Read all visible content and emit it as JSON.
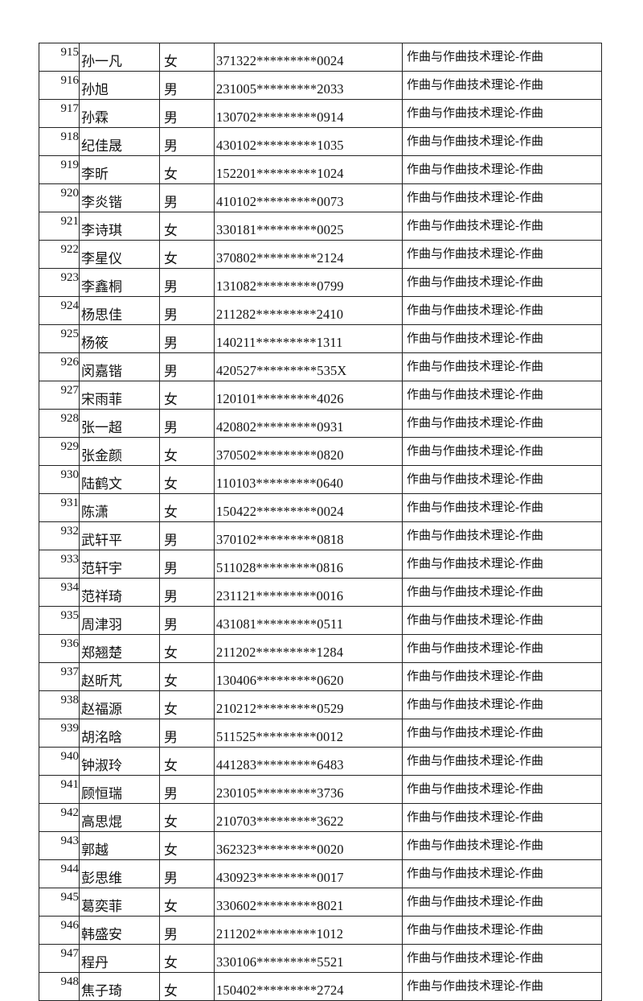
{
  "rows": [
    {
      "no": "915",
      "name": "孙一凡",
      "gender": "女",
      "id": "371322*********0024",
      "major": "作曲与作曲技术理论-作曲"
    },
    {
      "no": "916",
      "name": "孙旭",
      "gender": "男",
      "id": "231005*********2033",
      "major": "作曲与作曲技术理论-作曲"
    },
    {
      "no": "917",
      "name": "孙霖",
      "gender": "男",
      "id": "130702*********0914",
      "major": "作曲与作曲技术理论-作曲"
    },
    {
      "no": "918",
      "name": "纪佳晟",
      "gender": "男",
      "id": "430102*********1035",
      "major": "作曲与作曲技术理论-作曲"
    },
    {
      "no": "919",
      "name": "李昕",
      "gender": "女",
      "id": "152201*********1024",
      "major": "作曲与作曲技术理论-作曲"
    },
    {
      "no": "920",
      "name": "李炎锴",
      "gender": "男",
      "id": "410102*********0073",
      "major": "作曲与作曲技术理论-作曲"
    },
    {
      "no": "921",
      "name": "李诗琪",
      "gender": "女",
      "id": "330181*********0025",
      "major": "作曲与作曲技术理论-作曲"
    },
    {
      "no": "922",
      "name": "李星仪",
      "gender": "女",
      "id": "370802*********2124",
      "major": "作曲与作曲技术理论-作曲"
    },
    {
      "no": "923",
      "name": "李鑫桐",
      "gender": "男",
      "id": "131082*********0799",
      "major": "作曲与作曲技术理论-作曲"
    },
    {
      "no": "924",
      "name": "杨思佳",
      "gender": "男",
      "id": "211282*********2410",
      "major": "作曲与作曲技术理论-作曲"
    },
    {
      "no": "925",
      "name": "杨筱",
      "gender": "男",
      "id": "140211*********1311",
      "major": "作曲与作曲技术理论-作曲"
    },
    {
      "no": "926",
      "name": "闵嘉锴",
      "gender": "男",
      "id": "420527*********535X",
      "major": "作曲与作曲技术理论-作曲"
    },
    {
      "no": "927",
      "name": "宋雨菲",
      "gender": "女",
      "id": "120101*********4026",
      "major": "作曲与作曲技术理论-作曲"
    },
    {
      "no": "928",
      "name": "张一超",
      "gender": "男",
      "id": "420802*********0931",
      "major": "作曲与作曲技术理论-作曲"
    },
    {
      "no": "929",
      "name": "张金颜",
      "gender": "女",
      "id": "370502*********0820",
      "major": "作曲与作曲技术理论-作曲"
    },
    {
      "no": "930",
      "name": "陆鹤文",
      "gender": "女",
      "id": "110103*********0640",
      "major": "作曲与作曲技术理论-作曲"
    },
    {
      "no": "931",
      "name": "陈潇",
      "gender": "女",
      "id": "150422*********0024",
      "major": "作曲与作曲技术理论-作曲"
    },
    {
      "no": "932",
      "name": "武轩平",
      "gender": "男",
      "id": "370102*********0818",
      "major": "作曲与作曲技术理论-作曲"
    },
    {
      "no": "933",
      "name": "范轩宇",
      "gender": "男",
      "id": "511028*********0816",
      "major": "作曲与作曲技术理论-作曲"
    },
    {
      "no": "934",
      "name": "范祥琦",
      "gender": "男",
      "id": "231121*********0016",
      "major": "作曲与作曲技术理论-作曲"
    },
    {
      "no": "935",
      "name": "周津羽",
      "gender": "男",
      "id": "431081*********0511",
      "major": "作曲与作曲技术理论-作曲"
    },
    {
      "no": "936",
      "name": "郑翘楚",
      "gender": "女",
      "id": "211202*********1284",
      "major": "作曲与作曲技术理论-作曲"
    },
    {
      "no": "937",
      "name": "赵昕芃",
      "gender": "女",
      "id": "130406*********0620",
      "major": "作曲与作曲技术理论-作曲"
    },
    {
      "no": "938",
      "name": "赵福源",
      "gender": "女",
      "id": "210212*********0529",
      "major": "作曲与作曲技术理论-作曲"
    },
    {
      "no": "939",
      "name": "胡洺晗",
      "gender": "男",
      "id": "511525*********0012",
      "major": "作曲与作曲技术理论-作曲"
    },
    {
      "no": "940",
      "name": "钟淑玲",
      "gender": "女",
      "id": "441283*********6483",
      "major": "作曲与作曲技术理论-作曲"
    },
    {
      "no": "941",
      "name": "顾恒瑞",
      "gender": "男",
      "id": "230105*********3736",
      "major": "作曲与作曲技术理论-作曲"
    },
    {
      "no": "942",
      "name": "高思焜",
      "gender": "女",
      "id": "210703*********3622",
      "major": "作曲与作曲技术理论-作曲"
    },
    {
      "no": "943",
      "name": "郭越",
      "gender": "女",
      "id": "362323*********0020",
      "major": "作曲与作曲技术理论-作曲"
    },
    {
      "no": "944",
      "name": "彭思维",
      "gender": "男",
      "id": "430923*********0017",
      "major": "作曲与作曲技术理论-作曲"
    },
    {
      "no": "945",
      "name": "葛奕菲",
      "gender": "女",
      "id": "330602*********8021",
      "major": "作曲与作曲技术理论-作曲"
    },
    {
      "no": "946",
      "name": "韩盛安",
      "gender": "男",
      "id": "211202*********1012",
      "major": "作曲与作曲技术理论-作曲"
    },
    {
      "no": "947",
      "name": "程丹",
      "gender": "女",
      "id": "330106*********5521",
      "major": "作曲与作曲技术理论-作曲"
    },
    {
      "no": "948",
      "name": "焦子琦",
      "gender": "女",
      "id": "150402*********2724",
      "major": "作曲与作曲技术理论-作曲"
    }
  ]
}
